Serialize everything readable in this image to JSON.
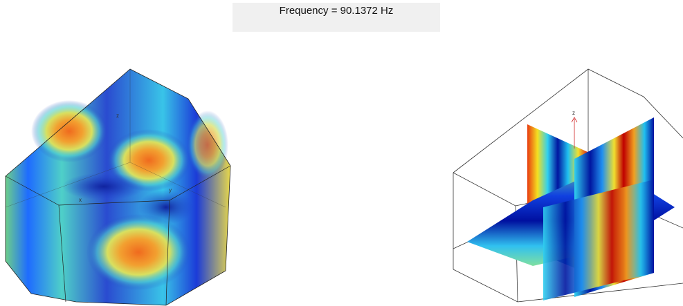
{
  "header": {
    "title": "Frequency = 90.1372 Hz"
  },
  "left_view": {
    "axis_labels": [
      "z",
      "x",
      "y"
    ]
  },
  "right_view": {
    "axis_label": "z"
  }
}
